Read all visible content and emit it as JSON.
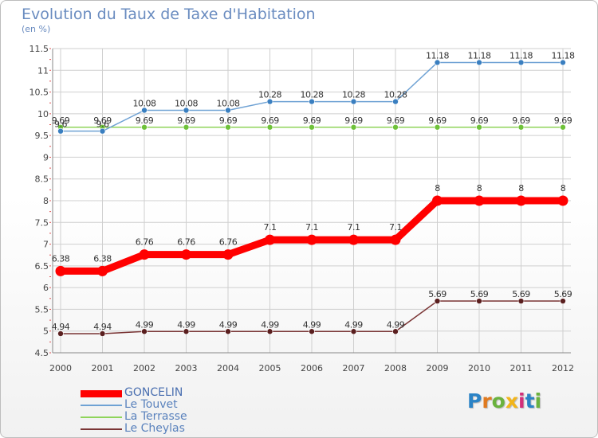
{
  "title": "Evolution du Taux de Taxe d'Habitation",
  "subtitle": "(en %)",
  "logo": {
    "text": "Proxiti",
    "letters": [
      "P",
      "r",
      "o",
      "x",
      "i",
      "t",
      "i"
    ],
    "colors": [
      "#2b83c6",
      "#e07a1f",
      "#6ab23e",
      "#f2b51b",
      "#d32f7a",
      "#2b83c6",
      "#6ab23e"
    ]
  },
  "chart_data": {
    "type": "line",
    "x": [
      "2000",
      "2001",
      "2002",
      "2003",
      "2004",
      "2005",
      "2006",
      "2007",
      "2008",
      "2009",
      "2010",
      "2011",
      "2012"
    ],
    "ylim": [
      4.5,
      11.5
    ],
    "yticks": [
      "4.5",
      "5",
      "5.5",
      "6",
      "6.5",
      "7",
      "7.5",
      "8",
      "8.5",
      "9",
      "9.5",
      "10",
      "10.5",
      "11",
      "11.5"
    ],
    "grid": true,
    "legend_position": "bottom-left",
    "series": [
      {
        "name": "GONCELIN",
        "color": "#ff0000",
        "values": [
          6.38,
          6.38,
          6.76,
          6.76,
          6.76,
          7.1,
          7.1,
          7.1,
          7.1,
          8,
          8,
          8,
          8
        ],
        "labels": [
          "6.38",
          "6.38",
          "6.76",
          "6.76",
          "6.76",
          "7.1",
          "7.1",
          "7.1",
          "7.1",
          "8",
          "8",
          "8",
          "8"
        ]
      },
      {
        "name": "Le Touvet",
        "color": "#6fa2d4",
        "values": [
          9.6,
          9.6,
          10.08,
          10.08,
          10.08,
          10.28,
          10.28,
          10.28,
          10.28,
          11.18,
          11.18,
          11.18,
          11.18
        ],
        "labels": [
          "9.6",
          "9.6",
          "10.08",
          "10.08",
          "10.08",
          "10.28",
          "10.28",
          "10.28",
          "10.28",
          "11.18",
          "11.18",
          "11.18",
          "11.18"
        ]
      },
      {
        "name": "La Terrasse",
        "color": "#8fd45a",
        "values": [
          9.69,
          9.69,
          9.69,
          9.69,
          9.69,
          9.69,
          9.69,
          9.69,
          9.69,
          9.69,
          9.69,
          9.69,
          9.69
        ],
        "labels": [
          "9.69",
          "9.69",
          "9.69",
          "9.69",
          "9.69",
          "9.69",
          "9.69",
          "9.69",
          "9.69",
          "9.69",
          "9.69",
          "9.69",
          "9.69"
        ]
      },
      {
        "name": "Le Cheylas",
        "color": "#7a3535",
        "values": [
          4.94,
          4.94,
          4.99,
          4.99,
          4.99,
          4.99,
          4.99,
          4.99,
          4.99,
          5.69,
          5.69,
          5.69,
          5.69
        ],
        "labels": [
          "4.94",
          "4.94",
          "4.99",
          "4.99",
          "4.99",
          "4.99",
          "4.99",
          "4.99",
          "4.99",
          "5.69",
          "5.69",
          "5.69",
          "5.69"
        ]
      }
    ]
  }
}
